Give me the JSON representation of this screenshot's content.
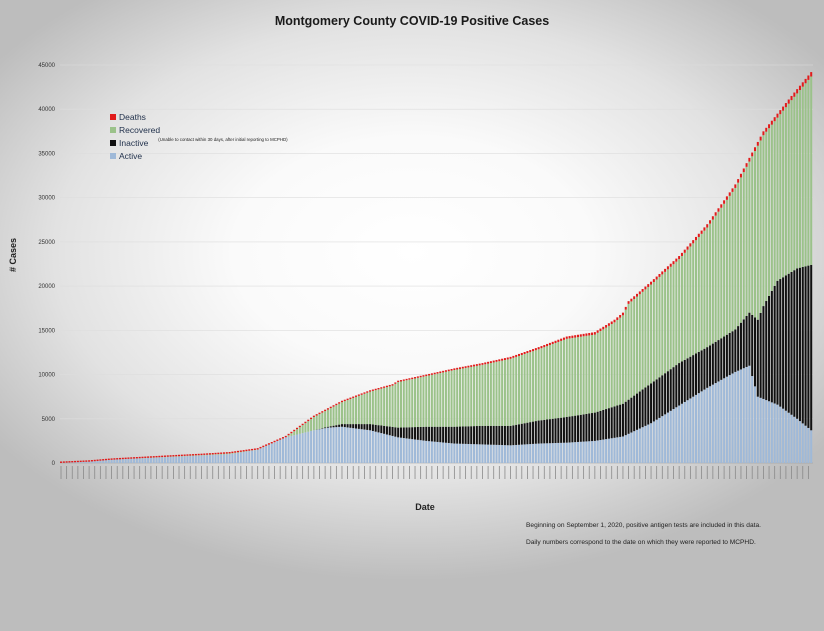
{
  "chart_data": {
    "type": "bar",
    "stacked": true,
    "title": "Montgomery County COVID-19 Positive Cases",
    "xlabel": "Date",
    "ylabel": "# Cases",
    "ylim": [
      0,
      45000
    ],
    "y_ticks": [
      0,
      5000,
      10000,
      15000,
      20000,
      25000,
      30000,
      35000,
      40000,
      45000
    ],
    "grid": true,
    "legend_position": "top-left",
    "legend_note": "(Unable to contact within 30 days, after initial reporting to MCPHD)",
    "series": [
      {
        "name": "Deaths",
        "color": "#e11b1b"
      },
      {
        "name": "Recovered",
        "color": "#9bc28a"
      },
      {
        "name": "Inactive",
        "color": "#111111"
      },
      {
        "name": "Active",
        "color": "#9fb9d8"
      }
    ],
    "approx_totals_at_index": [
      [
        0,
        10
      ],
      [
        10,
        150
      ],
      [
        20,
        420
      ],
      [
        30,
        600
      ],
      [
        40,
        780
      ],
      [
        50,
        950
      ],
      [
        60,
        1150
      ],
      [
        70,
        1600
      ],
      [
        80,
        3000
      ],
      [
        90,
        5300
      ],
      [
        100,
        7000
      ],
      [
        110,
        8200
      ],
      [
        118,
        8900
      ],
      [
        120,
        9300
      ],
      [
        130,
        10000
      ],
      [
        140,
        10700
      ],
      [
        150,
        11300
      ],
      [
        160,
        12000
      ],
      [
        170,
        13100
      ],
      [
        180,
        14300
      ],
      [
        190,
        14800
      ],
      [
        197,
        16200
      ],
      [
        200,
        17000
      ],
      [
        202,
        18300
      ],
      [
        210,
        20500
      ],
      [
        220,
        23400
      ],
      [
        230,
        27000
      ],
      [
        240,
        31500
      ],
      [
        250,
        37500
      ],
      [
        260,
        41500
      ],
      [
        267,
        44200
      ]
    ],
    "approx_active_at_index": [
      [
        0,
        10
      ],
      [
        20,
        400
      ],
      [
        40,
        700
      ],
      [
        60,
        1000
      ],
      [
        70,
        1500
      ],
      [
        80,
        2900
      ],
      [
        90,
        3700
      ],
      [
        95,
        4000
      ],
      [
        100,
        4100
      ],
      [
        110,
        3700
      ],
      [
        120,
        2900
      ],
      [
        130,
        2500
      ],
      [
        140,
        2200
      ],
      [
        150,
        2100
      ],
      [
        160,
        2000
      ],
      [
        170,
        2200
      ],
      [
        180,
        2300
      ],
      [
        190,
        2500
      ],
      [
        200,
        3000
      ],
      [
        210,
        4500
      ],
      [
        220,
        6500
      ],
      [
        230,
        8500
      ],
      [
        240,
        10300
      ],
      [
        245,
        11000
      ],
      [
        248,
        7500
      ],
      [
        255,
        6600
      ],
      [
        262,
        5000
      ],
      [
        267,
        3700
      ]
    ],
    "approx_inactive_at_index": [
      [
        0,
        0
      ],
      [
        90,
        0
      ],
      [
        95,
        100
      ],
      [
        100,
        300
      ],
      [
        110,
        700
      ],
      [
        120,
        1100
      ],
      [
        130,
        1600
      ],
      [
        140,
        1900
      ],
      [
        150,
        2100
      ],
      [
        160,
        2200
      ],
      [
        170,
        2600
      ],
      [
        180,
        2900
      ],
      [
        190,
        3200
      ],
      [
        200,
        3700
      ],
      [
        210,
        4500
      ],
      [
        220,
        4800
      ],
      [
        230,
        4600
      ],
      [
        240,
        4800
      ],
      [
        245,
        6000
      ],
      [
        250,
        10500
      ],
      [
        255,
        14000
      ],
      [
        262,
        17000
      ],
      [
        267,
        18700
      ]
    ],
    "approx_deaths_at_index": [
      [
        0,
        0
      ],
      [
        40,
        40
      ],
      [
        80,
        90
      ],
      [
        120,
        150
      ],
      [
        160,
        220
      ],
      [
        200,
        300
      ],
      [
        240,
        400
      ],
      [
        267,
        500
      ]
    ]
  },
  "notes": [
    "Beginning on September 1, 2020, positive antigen tests are included in this data.",
    "Daily numbers correspond to the date on which they were reported to MCPHD."
  ]
}
